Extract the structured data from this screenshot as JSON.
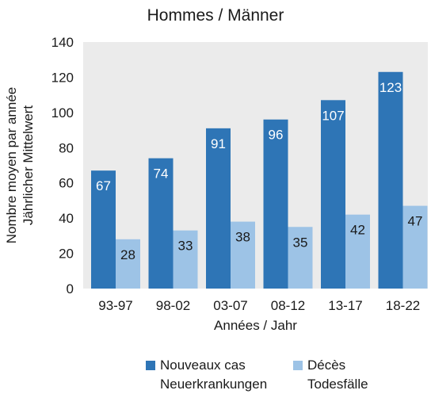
{
  "chart_data": {
    "type": "bar",
    "title": "Hommes / Männer",
    "categories": [
      "93-97",
      "98-02",
      "03-07",
      "08-12",
      "13-17",
      "18-22"
    ],
    "series": [
      {
        "name": "Nouveaux cas\nNeuerkrankungen",
        "name_lines": [
          "Nouveaux cas",
          "Neuerkrankungen"
        ],
        "color": "#2e75b6",
        "values": [
          67,
          74,
          91,
          96,
          107,
          123
        ]
      },
      {
        "name": "Décès\nTodesfälle",
        "name_lines": [
          "Décès",
          "Todesfälle"
        ],
        "color": "#9dc3e6",
        "values": [
          28,
          33,
          38,
          35,
          42,
          47
        ]
      }
    ],
    "xlabel": "Années / Jahr",
    "ylabel_lines": [
      "Nombre moyen par année",
      "Jährlicher Mittelwert"
    ],
    "ylim": [
      0,
      140
    ],
    "yticks": [
      0,
      20,
      40,
      60,
      80,
      100,
      120,
      140
    ],
    "plot_background": "#ebebeb",
    "grid": false,
    "legend_position": "bottom"
  }
}
